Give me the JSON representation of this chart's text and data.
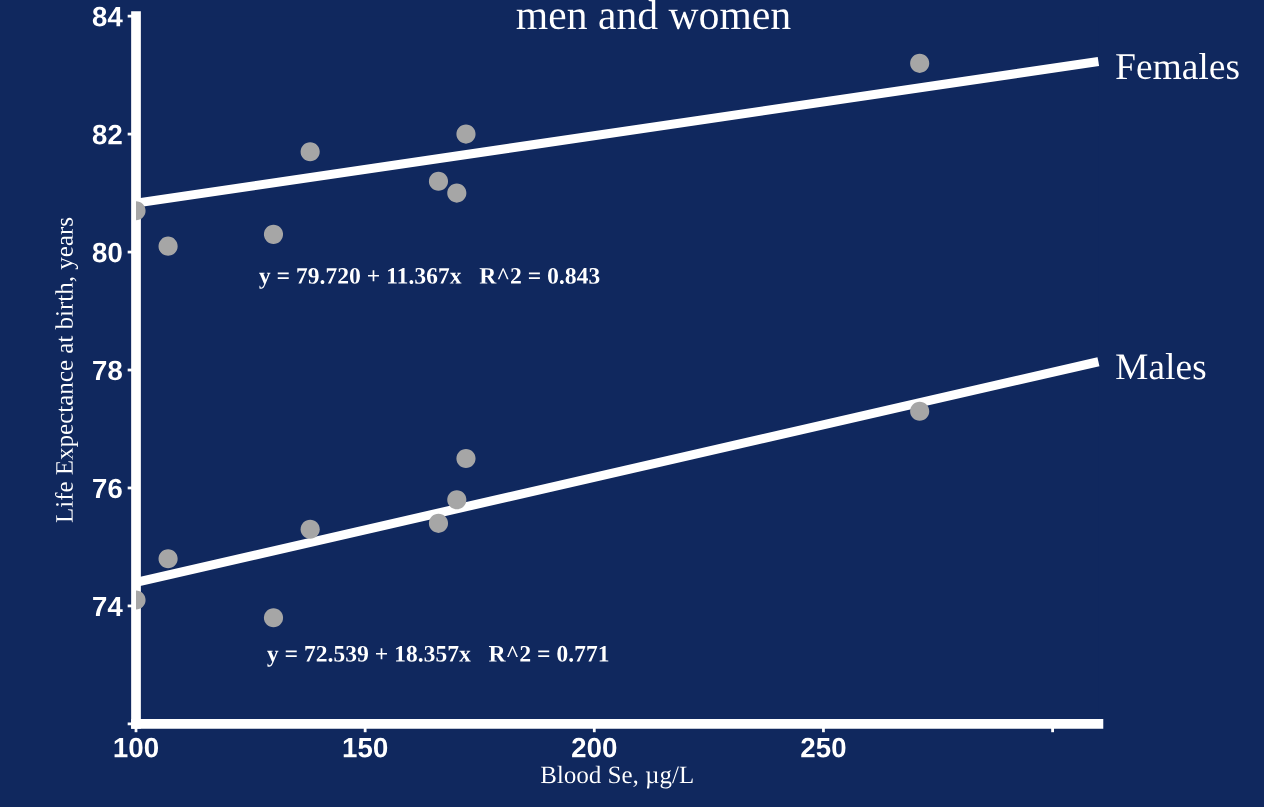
{
  "chart_data": {
    "type": "scatter",
    "title": "men and women",
    "xlabel": "Blood Se, µg/L",
    "ylabel": "Life Expectance at birth, years",
    "xlim": [
      100,
      310
    ],
    "xticks": [
      100,
      150,
      200,
      250,
      {
        "value": 300,
        "label": null
      }
    ],
    "ylim": [
      72,
      84
    ],
    "yticks": [
      {
        "value": 72,
        "label": null
      },
      74,
      76,
      78,
      80,
      82,
      84
    ],
    "marker": "circle",
    "grid": false,
    "legend": false,
    "annotations": [
      "y = 79.720 + 11.367x   R^2 = 0.843",
      "y = 72.539 + 18.357x   R^2 = 0.771"
    ],
    "series": [
      {
        "color": "#a6a6a6",
        "x": [
          100,
          107,
          130,
          138,
          166,
          170,
          172,
          271
        ],
        "values": [
          80.7,
          80.1,
          80.3,
          81.7,
          81.2,
          81.0,
          82.0,
          83.2
        ]
      },
      {
        "color": "#a6a6a6",
        "x": [
          100,
          107,
          130,
          138,
          166,
          170,
          172,
          271
        ],
        "values": [
          74.1,
          74.8,
          73.8,
          75.3,
          75.4,
          75.8,
          76.5,
          77.3
        ]
      },
      {
        "type": "line",
        "name": "Females",
        "color": "#ffffff",
        "marker": "none",
        "x": [
          100,
          310
        ],
        "values": [
          80.83,
          83.23
        ]
      },
      {
        "type": "line",
        "name": "Males",
        "color": "#ffffff",
        "marker": "none",
        "x": [
          100,
          310
        ],
        "values": [
          74.4,
          78.14
        ]
      }
    ]
  }
}
